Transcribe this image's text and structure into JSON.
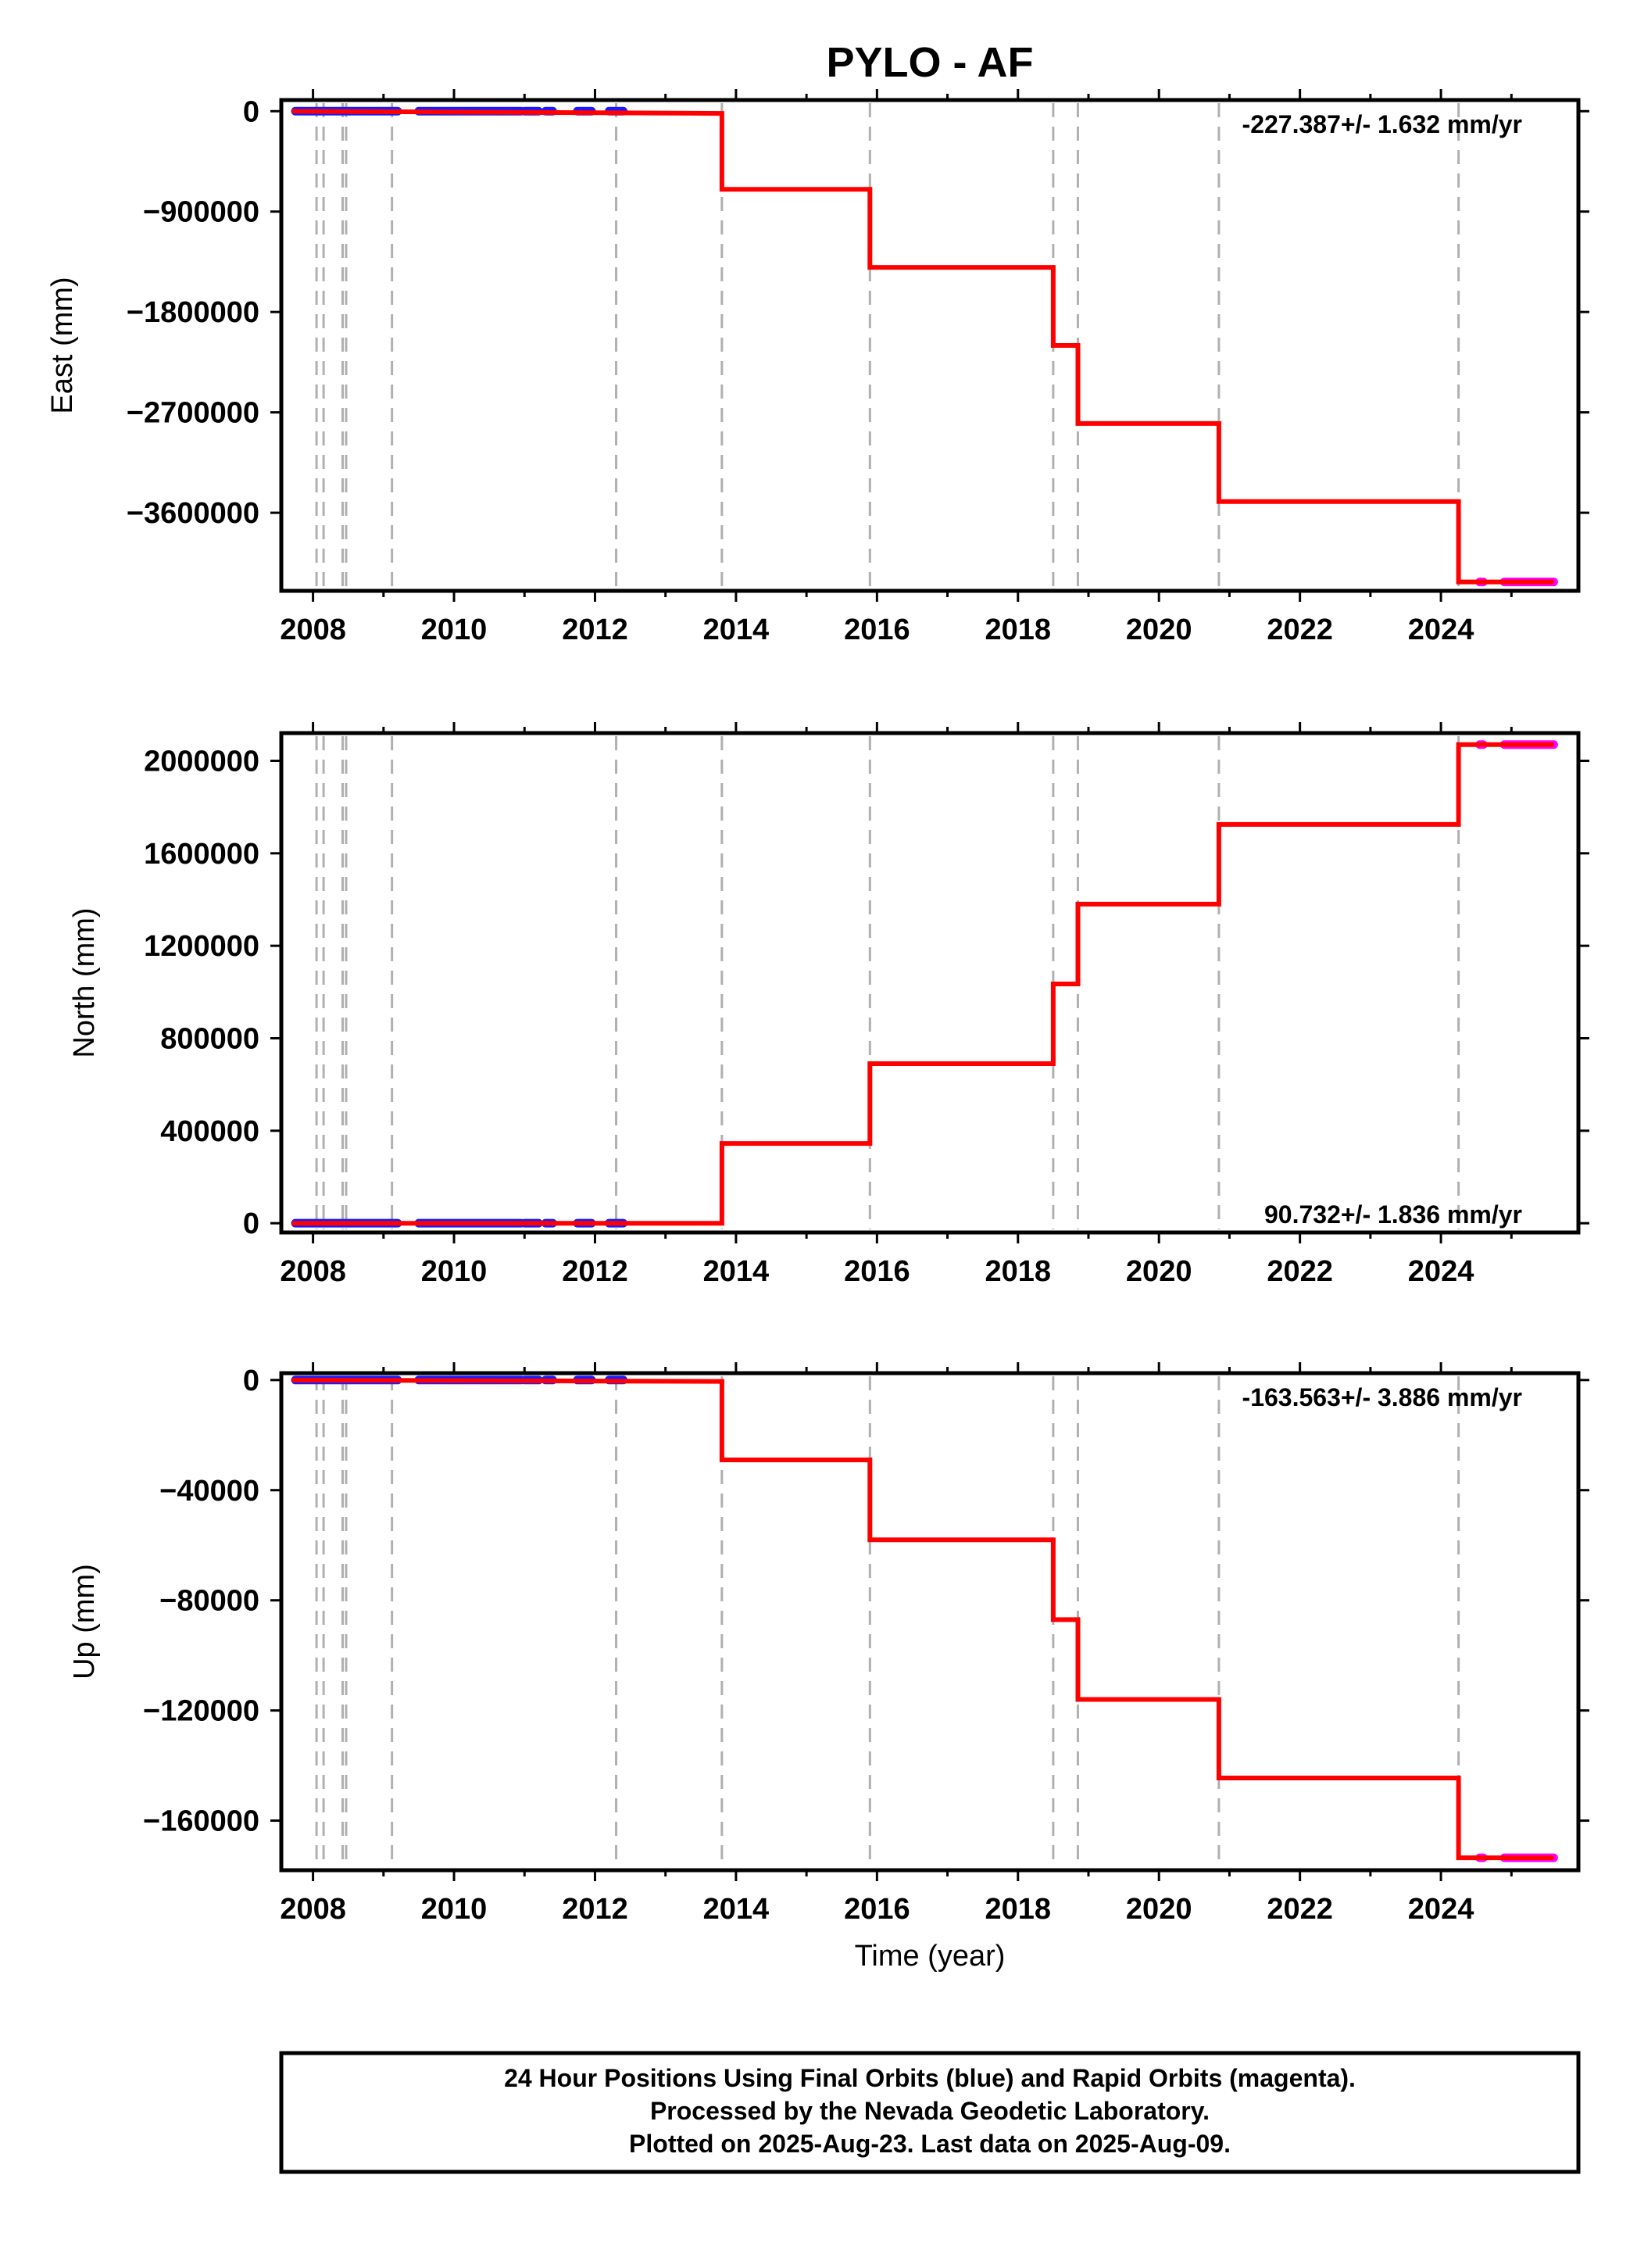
{
  "title": "PYLO - AF",
  "colors": {
    "model": "#ff0000",
    "final_orbits": "#1a1aff",
    "rapid_orbits": "#ff00ff",
    "event_lines": "#b0b0b0",
    "axis": "#000000"
  },
  "chart_data": [
    {
      "type": "line",
      "ylabel": "East (mm)",
      "xlabel": "",
      "xlim": [
        2007.55,
        2025.95
      ],
      "ylim": [
        -4300000,
        100000
      ],
      "yticks": [
        0,
        -900000,
        -1800000,
        -2700000,
        -3600000
      ],
      "ytick_labels": [
        "0",
        "−900000",
        "−1800000",
        "−2700000",
        "−3600000"
      ],
      "xticks": [
        2008,
        2010,
        2012,
        2014,
        2016,
        2018,
        2020,
        2022,
        2024
      ],
      "xtick_labels": [
        "2008",
        "2010",
        "2012",
        "2014",
        "2016",
        "2018",
        "2020",
        "2022",
        "2024"
      ],
      "rate_label": "-227.387+/- 1.632 mm/yr",
      "rate_position": "top-right",
      "event_lines": [
        2008.05,
        2008.15,
        2008.42,
        2008.47,
        2009.12,
        2012.3,
        2013.8,
        2015.9,
        2018.5,
        2018.85,
        2020.85,
        2024.25
      ],
      "model": {
        "x": [
          2007.7,
          2013.8,
          2013.8,
          2015.9,
          2015.9,
          2018.5,
          2018.5,
          2018.85,
          2018.85,
          2020.85,
          2020.85,
          2024.25,
          2024.25,
          2025.6
        ],
        "y": [
          0,
          -20000,
          -700000,
          -700000,
          -1400000,
          -1400000,
          -2100000,
          -2100000,
          -2800000,
          -2800000,
          -3500000,
          -3500000,
          -4220000,
          -4220000
        ]
      },
      "series": [
        {
          "name": "Final Orbits",
          "segments": [
            [
              2007.75,
              2009.2
            ],
            [
              2009.5,
              2010.95
            ],
            [
              2011.0,
              2011.2
            ],
            [
              2011.3,
              2011.4
            ],
            [
              2011.75,
              2011.95
            ],
            [
              2012.2,
              2012.4
            ]
          ],
          "y": 0
        },
        {
          "name": "Rapid Orbits",
          "segments": [
            [
              2024.55,
              2024.6
            ],
            [
              2024.9,
              2025.6
            ]
          ],
          "y": -4220000
        }
      ]
    },
    {
      "type": "line",
      "ylabel": "North (mm)",
      "xlabel": "",
      "xlim": [
        2007.55,
        2025.95
      ],
      "ylim": [
        -40000,
        2120000
      ],
      "yticks": [
        0,
        400000,
        800000,
        1200000,
        1600000,
        2000000
      ],
      "ytick_labels": [
        "0",
        "400000",
        "800000",
        "1200000",
        "1600000",
        "2000000"
      ],
      "xticks": [
        2008,
        2010,
        2012,
        2014,
        2016,
        2018,
        2020,
        2022,
        2024
      ],
      "xtick_labels": [
        "2008",
        "2010",
        "2012",
        "2014",
        "2016",
        "2018",
        "2020",
        "2022",
        "2024"
      ],
      "rate_label": "90.732+/- 1.836 mm/yr",
      "rate_position": "bottom-right",
      "event_lines": [
        2008.05,
        2008.15,
        2008.42,
        2008.47,
        2009.12,
        2012.3,
        2013.8,
        2015.9,
        2018.5,
        2018.85,
        2020.85,
        2024.25
      ],
      "model": {
        "x": [
          2007.7,
          2013.8,
          2013.8,
          2015.9,
          2015.9,
          2018.5,
          2018.5,
          2018.85,
          2018.85,
          2020.85,
          2020.85,
          2024.25,
          2024.25,
          2025.6
        ],
        "y": [
          0,
          0,
          345000,
          345000,
          690000,
          690000,
          1035000,
          1035000,
          1380000,
          1380000,
          1725000,
          1725000,
          2070000,
          2070000
        ]
      },
      "series": [
        {
          "name": "Final Orbits",
          "segments": [
            [
              2007.75,
              2009.2
            ],
            [
              2009.5,
              2010.95
            ],
            [
              2011.0,
              2011.2
            ],
            [
              2011.3,
              2011.4
            ],
            [
              2011.75,
              2011.95
            ],
            [
              2012.2,
              2012.4
            ]
          ],
          "y": 0
        },
        {
          "name": "Rapid Orbits",
          "segments": [
            [
              2024.55,
              2024.6
            ],
            [
              2024.9,
              2025.6
            ]
          ],
          "y": 2070000
        }
      ]
    },
    {
      "type": "line",
      "ylabel": "Up (mm)",
      "xlabel": "Time (year)",
      "xlim": [
        2007.55,
        2025.95
      ],
      "ylim": [
        -178000,
        2500
      ],
      "yticks": [
        0,
        -40000,
        -80000,
        -120000,
        -160000
      ],
      "ytick_labels": [
        "0",
        "−40000",
        "−80000",
        "−120000",
        "−160000"
      ],
      "xticks": [
        2008,
        2010,
        2012,
        2014,
        2016,
        2018,
        2020,
        2022,
        2024
      ],
      "xtick_labels": [
        "2008",
        "2010",
        "2012",
        "2014",
        "2016",
        "2018",
        "2020",
        "2022",
        "2024"
      ],
      "rate_label": "-163.563+/- 3.886 mm/yr",
      "rate_position": "top-right",
      "event_lines": [
        2008.05,
        2008.15,
        2008.42,
        2008.47,
        2009.12,
        2012.3,
        2013.8,
        2015.9,
        2018.5,
        2018.85,
        2020.85,
        2024.25
      ],
      "model": {
        "x": [
          2007.7,
          2013.8,
          2013.8,
          2015.9,
          2015.9,
          2018.5,
          2018.5,
          2018.85,
          2018.85,
          2020.85,
          2020.85,
          2024.25,
          2024.25,
          2025.6
        ],
        "y": [
          0,
          -500,
          -29000,
          -29000,
          -58000,
          -58000,
          -87000,
          -87000,
          -116000,
          -116000,
          -144500,
          -144500,
          -173500,
          -173500
        ]
      },
      "series": [
        {
          "name": "Final Orbits",
          "segments": [
            [
              2007.75,
              2009.2
            ],
            [
              2009.5,
              2010.95
            ],
            [
              2011.0,
              2011.2
            ],
            [
              2011.3,
              2011.4
            ],
            [
              2011.75,
              2011.95
            ],
            [
              2012.2,
              2012.4
            ]
          ],
          "y": 0
        },
        {
          "name": "Rapid Orbits",
          "segments": [
            [
              2024.55,
              2024.6
            ],
            [
              2024.9,
              2025.6
            ]
          ],
          "y": -173500
        }
      ]
    }
  ],
  "footer": {
    "line1": "24 Hour Positions Using Final Orbits (blue) and Rapid Orbits (magenta).",
    "line2": "Processed by the Nevada Geodetic Laboratory.",
    "line3": "Plotted on 2025-Aug-23. Last data on 2025-Aug-09."
  }
}
